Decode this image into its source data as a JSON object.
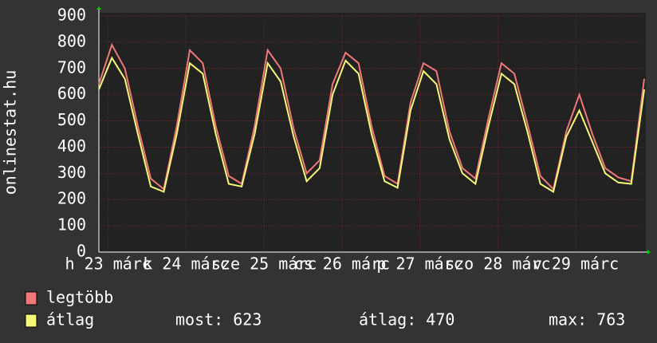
{
  "chart_data": {
    "type": "line",
    "y_label": "onlinestat.hu",
    "x": [
      0,
      4,
      8,
      12,
      16,
      20,
      24,
      28,
      32,
      36,
      40,
      44,
      48,
      52,
      56,
      60,
      64,
      68,
      72,
      76,
      80,
      84,
      88,
      92,
      96,
      100,
      104,
      108,
      112,
      116,
      120,
      124,
      128,
      132,
      136,
      140,
      144,
      148,
      152,
      156,
      160,
      164,
      168
    ],
    "xlim": [
      0,
      168
    ],
    "day_labels": [
      "h 23 márc",
      "k 24 márc",
      "sze 25 márc",
      "cs 26 márc",
      "p 27 márc",
      "szo 28 márc",
      "v 29 márc"
    ],
    "ylim": [
      0,
      900
    ],
    "yticks": [
      0,
      100,
      200,
      300,
      400,
      500,
      600,
      700,
      800,
      900
    ],
    "grid": true,
    "series": [
      {
        "name": "legtöbb",
        "color": "#f07878",
        "values": [
          640,
          790,
          700,
          480,
          280,
          240,
          480,
          770,
          720,
          480,
          290,
          260,
          480,
          770,
          700,
          470,
          300,
          350,
          640,
          760,
          720,
          480,
          290,
          260,
          570,
          720,
          690,
          460,
          320,
          280,
          510,
          720,
          680,
          490,
          290,
          240,
          460,
          600,
          450,
          320,
          285,
          270,
          660
        ]
      },
      {
        "name": "átlag",
        "color": "#f8f878",
        "values": [
          620,
          740,
          660,
          450,
          250,
          230,
          450,
          720,
          680,
          450,
          260,
          250,
          450,
          720,
          650,
          440,
          270,
          320,
          600,
          730,
          680,
          450,
          270,
          245,
          540,
          690,
          640,
          430,
          300,
          260,
          480,
          680,
          640,
          460,
          260,
          230,
          440,
          540,
          420,
          300,
          265,
          260,
          620
        ]
      }
    ],
    "stats": [
      "most: 623",
      "átlag: 470",
      "max: 763"
    ]
  }
}
